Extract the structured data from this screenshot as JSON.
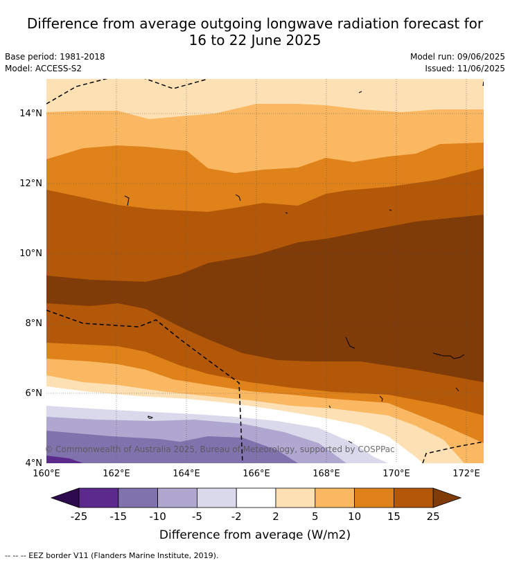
{
  "title": {
    "line1": "Difference from average outgoing longwave radiation forecast for",
    "line2": "16 to 22 June 2025"
  },
  "meta": {
    "base_period": "Base period: 1981-2018",
    "model": "Model: ACCESS-S2",
    "model_run": "Model run: 09/06/2025",
    "issued": "Issued: 11/06/2025"
  },
  "map": {
    "lon_ticks": [
      "160°E",
      "162°E",
      "164°E",
      "166°E",
      "168°E",
      "170°E",
      "172°E"
    ],
    "lat_ticks": [
      "14°N",
      "12°N",
      "10°N",
      "8°N",
      "6°N",
      "4°N"
    ],
    "copyright": "© Commonwealth of Australia 2025, Bureau of Meteorology, supported by COSPPac"
  },
  "colorbar": {
    "tick_labels": [
      "-25",
      "-15",
      "-10",
      "-5",
      "-2",
      "2",
      "5",
      "10",
      "15",
      "25"
    ],
    "label": "Difference from average (W/m2)",
    "colors": [
      "#2e0a4f",
      "#5b2a8c",
      "#8073ad",
      "#b0a7d0",
      "#d9d9eb",
      "#ffffff",
      "#fde0b4",
      "#fbb862",
      "#e0821a",
      "#b35808",
      "#7f3b08"
    ]
  },
  "legend": {
    "eez_text": "--  --  -- EEZ border V11 (Flanders Marine Institute, 2019)."
  }
}
